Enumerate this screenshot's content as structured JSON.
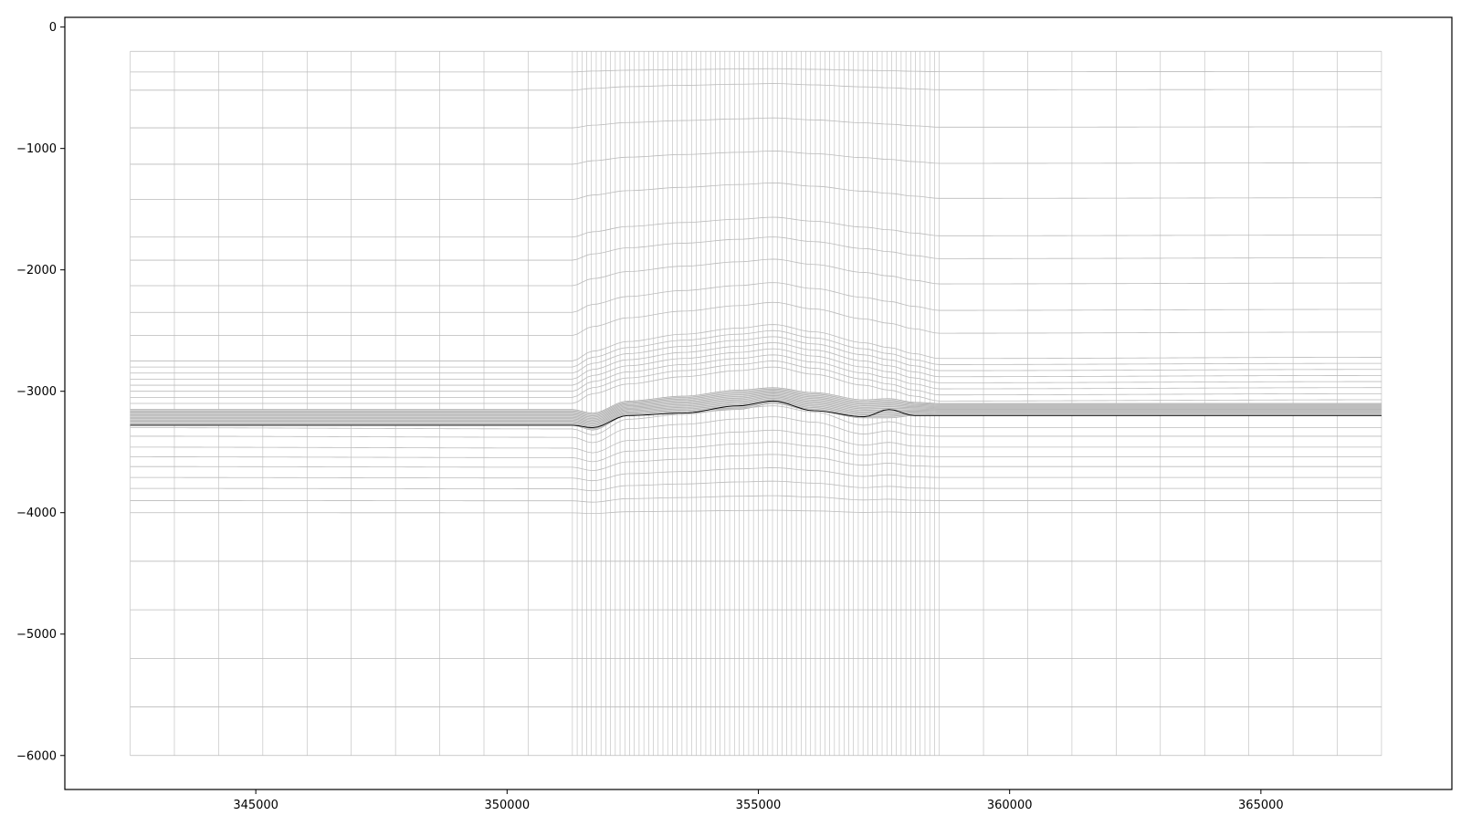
{
  "chart_data": {
    "type": "line",
    "title": "",
    "xlabel": "",
    "ylabel": "",
    "xlim": [
      341200,
      368800
    ],
    "ylim": [
      -6280,
      80
    ],
    "grid": false,
    "x_ticks": [
      345000,
      350000,
      355000,
      360000,
      365000
    ],
    "x_tick_labels": [
      "345000",
      "350000",
      "355000",
      "360000",
      "365000"
    ],
    "y_ticks": [
      0,
      -1000,
      -2000,
      -3000,
      -4000,
      -5000,
      -6000
    ],
    "y_tick_labels": [
      "0",
      "−1000",
      "−2000",
      "−3000",
      "−4000",
      "−5000",
      "−6000"
    ],
    "mesh": {
      "x_range": [
        342500,
        367400
      ],
      "y_bottom": -6000,
      "top_surface": -200,
      "vertical_lines_coarse_left": [
        342500,
        343380,
        344260,
        345140,
        346020,
        346900,
        347780,
        348660,
        349540,
        350420,
        351300
      ],
      "vertical_lines_fine_range": [
        351300,
        358600
      ],
      "vertical_lines_fine_count": 78,
      "vertical_lines_coarse_right": [
        358600,
        359480,
        360360,
        361240,
        362120,
        363000,
        363880,
        364760,
        365640,
        366520,
        367400
      ],
      "profile_control_x": [
        342500,
        351300,
        351700,
        352400,
        353500,
        354600,
        355300,
        356100,
        357100,
        357600,
        358100,
        358600,
        367400
      ],
      "upper_base_depth": [
        -200,
        -370,
        -520,
        -830,
        -1130,
        -1420,
        -1730,
        -1920,
        -2130,
        -2350,
        -2540,
        -2750,
        -2800,
        -2850,
        -2900,
        -2950,
        -3000,
        -3050,
        -3100
      ],
      "lower_base_depth": [
        -3300,
        -3370,
        -3460,
        -3540,
        -3620,
        -3710,
        -3800,
        -3900,
        -4000,
        -4400,
        -4800,
        -5200,
        -5600
      ],
      "upper_relief": [
        0,
        0,
        80,
        160,
        220,
        270,
        300,
        240,
        150,
        110,
        60,
        20,
        30
      ],
      "lower_relief": [
        0,
        -10,
        -60,
        70,
        110,
        160,
        180,
        130,
        20,
        50,
        10,
        0,
        0
      ],
      "horizon_shift": [
        0,
        0,
        -70,
        70,
        110,
        170,
        240,
        170,
        30,
        110,
        20,
        30,
        30
      ],
      "dense_band_top": [
        -3150,
        -3150,
        -3180,
        -3080,
        -3040,
        -2990,
        -2970,
        -3010,
        -3070,
        -3060,
        -3090,
        -3100,
        -3100
      ],
      "dense_band_bottom": [
        -3280,
        -3280,
        -3320,
        -3200,
        -3180,
        -3150,
        -3100,
        -3160,
        -3220,
        -3220,
        -3200,
        -3200,
        -3200
      ],
      "dense_band_line_count": 12,
      "horizon_line": [
        -3280,
        -3280,
        -3300,
        -3200,
        -3180,
        -3120,
        -3080,
        -3160,
        -3210,
        -3150,
        -3200,
        -3200,
        -3200
      ]
    },
    "colors": {
      "mesh": "#bbbbbb",
      "horizon": "#000000",
      "axes": "#000000",
      "background": "#ffffff"
    }
  }
}
